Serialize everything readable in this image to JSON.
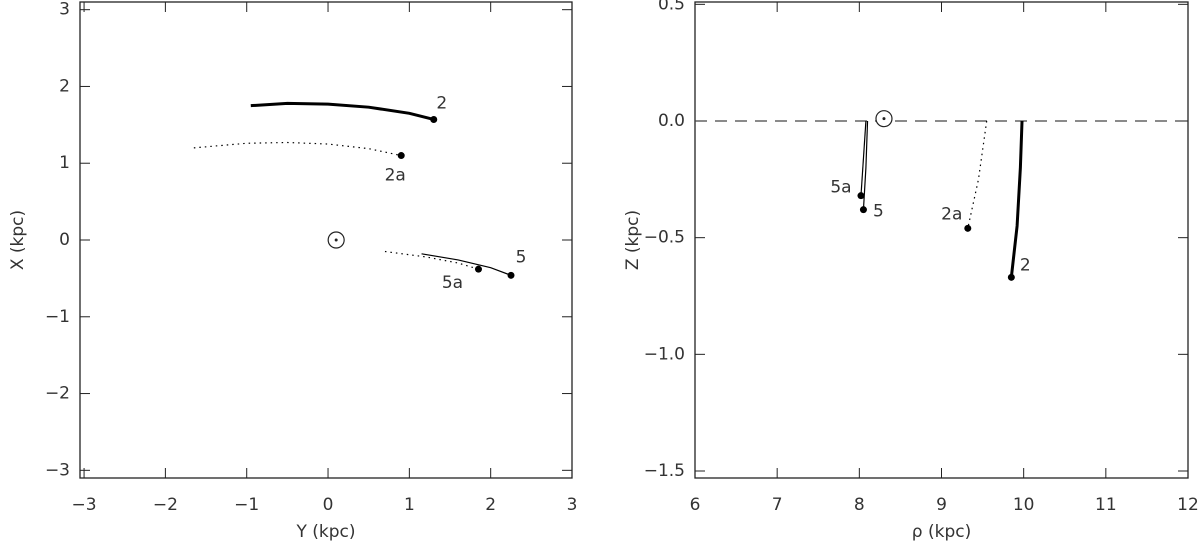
{
  "chart_data": [
    {
      "type": "line",
      "xlabel": "Y (kpc)",
      "ylabel": "X (kpc)",
      "xlim": [
        -3.05,
        3.0
      ],
      "ylim": [
        -3.1,
        3.1
      ],
      "xticks": [
        {
          "value": -3,
          "label": "−3"
        },
        {
          "value": -2,
          "label": "−2"
        },
        {
          "value": -1,
          "label": "−1"
        },
        0,
        1,
        2,
        3
      ],
      "yticks": [
        {
          "value": -3,
          "label": "−3"
        },
        {
          "value": -2,
          "label": "−2"
        },
        {
          "value": -1,
          "label": "−1"
        },
        0,
        1,
        2,
        3
      ],
      "sun": {
        "x": 0.1,
        "y": 0
      },
      "series": [
        {
          "name": "2",
          "style": "thick",
          "color": "#000",
          "x": [
            -0.95,
            -0.5,
            0,
            0.5,
            1.0,
            1.3
          ],
          "values": [
            1.75,
            1.78,
            1.77,
            1.73,
            1.65,
            1.57
          ]
        },
        {
          "name": "2a",
          "style": "dotted",
          "color": "#000",
          "x": [
            -1.65,
            -1.0,
            -0.5,
            0,
            0.5,
            0.9
          ],
          "values": [
            1.2,
            1.26,
            1.27,
            1.25,
            1.19,
            1.1
          ]
        },
        {
          "name": "5",
          "style": "thin",
          "color": "#000",
          "x": [
            1.15,
            1.6,
            2.0,
            2.25
          ],
          "values": [
            -0.18,
            -0.26,
            -0.36,
            -0.46
          ]
        },
        {
          "name": "5a",
          "style": "dotted",
          "color": "#000",
          "x": [
            0.7,
            1.2,
            1.6,
            1.85
          ],
          "values": [
            -0.15,
            -0.22,
            -0.3,
            -0.38
          ]
        }
      ]
    },
    {
      "type": "line",
      "xlabel": "ρ (kpc)",
      "ylabel": "Z (kpc)",
      "xlim": [
        6,
        12
      ],
      "ylim": [
        -1.53,
        0.51
      ],
      "xticks": [
        6,
        7,
        8,
        9,
        10,
        11,
        12
      ],
      "yticks": [
        {
          "value": -1.5,
          "label": "−1.5"
        },
        {
          "value": -1,
          "label": "−1.0"
        },
        {
          "value": -0.5,
          "label": "−0.5"
        },
        {
          "value": 0,
          "label": "0.0"
        },
        0.5
      ],
      "hline": 0,
      "sun": {
        "x": 8.3,
        "y": 0.01
      },
      "series": [
        {
          "name": "2",
          "style": "thick",
          "color": "#000",
          "x": [
            9.98,
            9.96,
            9.92,
            9.85
          ],
          "values": [
            0,
            -0.2,
            -0.45,
            -0.67
          ]
        },
        {
          "name": "2a",
          "style": "dotted",
          "color": "#000",
          "x": [
            9.55,
            9.45,
            9.32
          ],
          "values": [
            0,
            -0.25,
            -0.46
          ]
        },
        {
          "name": "5",
          "style": "thin",
          "color": "#000",
          "x": [
            8.1,
            8.08,
            8.05
          ],
          "values": [
            0,
            -0.2,
            -0.38
          ]
        },
        {
          "name": "5a",
          "style": "thin",
          "color": "#000",
          "x": [
            8.08,
            8.02
          ],
          "values": [
            0,
            -0.32
          ]
        }
      ]
    }
  ]
}
